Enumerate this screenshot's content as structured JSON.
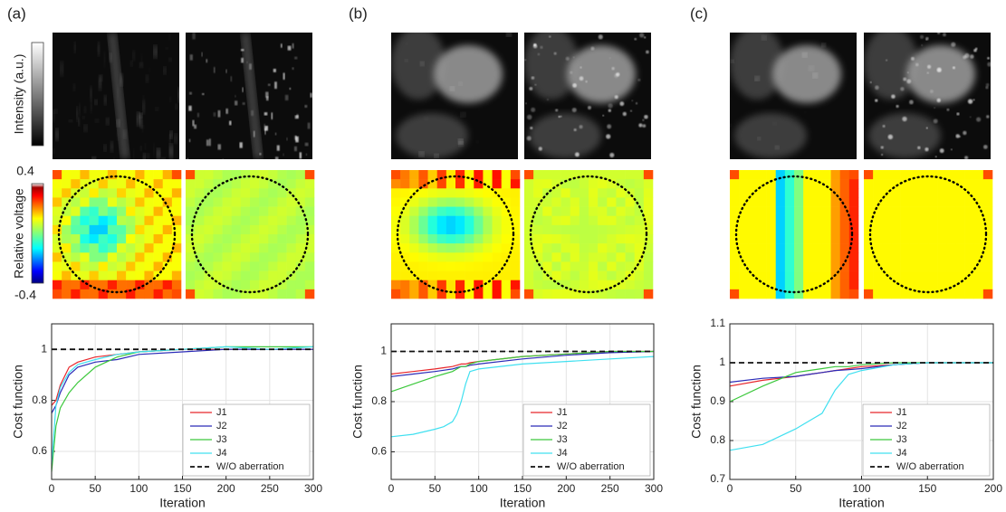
{
  "panels": [
    {
      "label": "(a)"
    },
    {
      "label": "(b)"
    },
    {
      "label": "(c)"
    }
  ],
  "colorbars": {
    "intensity_label": "Intensity (a.u.)",
    "voltage_label": "Relative voltage",
    "voltage_max": "0.4",
    "voltage_min": "-0.4"
  },
  "chart_data": [
    {
      "type": "line",
      "xlabel": "Iteration",
      "ylabel": "Cost function",
      "x": [
        0,
        5,
        10,
        20,
        30,
        50,
        75,
        100,
        150,
        200,
        250,
        300
      ],
      "xlim": [
        0,
        300
      ],
      "ylim": [
        0.49,
        1.1
      ],
      "xticks": [
        0,
        50,
        100,
        150,
        200,
        250,
        300
      ],
      "yticks": [
        0.6,
        0.8,
        1
      ],
      "grid": true,
      "legend": "lower right",
      "series": [
        {
          "name": "J1",
          "color": "#e8262b",
          "values": [
            0.78,
            0.8,
            0.86,
            0.93,
            0.95,
            0.97,
            0.98,
            0.99,
            1.0,
            1.0,
            1.0,
            1.0
          ]
        },
        {
          "name": "J2",
          "color": "#2b2bb8",
          "values": [
            0.75,
            0.78,
            0.83,
            0.9,
            0.93,
            0.95,
            0.96,
            0.98,
            0.99,
            1.0,
            1.0,
            1.0
          ]
        },
        {
          "name": "J3",
          "color": "#3cc83c",
          "values": [
            0.52,
            0.7,
            0.77,
            0.83,
            0.87,
            0.93,
            0.97,
            0.99,
            1.0,
            1.01,
            1.01,
            1.01
          ]
        },
        {
          "name": "J4",
          "color": "#40e0f0",
          "values": [
            0.55,
            0.78,
            0.85,
            0.91,
            0.94,
            0.96,
            0.98,
            0.99,
            1.0,
            1.01,
            1.0,
            1.01
          ]
        },
        {
          "name": "W/O aberration",
          "color": "#111111",
          "linestyle": "dashed",
          "values": [
            1,
            1,
            1,
            1,
            1,
            1,
            1,
            1,
            1,
            1,
            1,
            1
          ]
        }
      ]
    },
    {
      "type": "line",
      "xlabel": "Iteration",
      "ylabel": "Cost function",
      "x": [
        0,
        25,
        50,
        60,
        70,
        75,
        80,
        85,
        90,
        100,
        150,
        200,
        250,
        300
      ],
      "xlim": [
        0,
        300
      ],
      "ylim": [
        0.49,
        1.11
      ],
      "xticks": [
        0,
        50,
        100,
        150,
        200,
        250,
        300
      ],
      "yticks": [
        0.6,
        0.8,
        1
      ],
      "grid": true,
      "legend": "lower right",
      "series": [
        {
          "name": "J1",
          "color": "#e8262b",
          "values": [
            0.91,
            0.92,
            0.93,
            0.935,
            0.94,
            0.945,
            0.95,
            0.95,
            0.955,
            0.96,
            0.98,
            0.99,
            1.0,
            1.0
          ]
        },
        {
          "name": "J2",
          "color": "#2b2bb8",
          "values": [
            0.9,
            0.91,
            0.92,
            0.925,
            0.93,
            0.935,
            0.94,
            0.94,
            0.945,
            0.95,
            0.97,
            0.985,
            0.995,
            1.0
          ]
        },
        {
          "name": "J3",
          "color": "#3cc83c",
          "values": [
            0.84,
            0.87,
            0.9,
            0.91,
            0.92,
            0.93,
            0.94,
            0.94,
            0.95,
            0.96,
            0.98,
            0.99,
            1.0,
            1.0
          ]
        },
        {
          "name": "J4",
          "color": "#40e0f0",
          "values": [
            0.66,
            0.67,
            0.69,
            0.7,
            0.72,
            0.75,
            0.8,
            0.87,
            0.92,
            0.93,
            0.95,
            0.96,
            0.97,
            0.98
          ]
        },
        {
          "name": "W/O aberration",
          "color": "#111111",
          "linestyle": "dashed",
          "values": [
            1,
            1,
            1,
            1,
            1,
            1,
            1,
            1,
            1,
            1,
            1,
            1,
            1,
            1
          ]
        }
      ]
    },
    {
      "type": "line",
      "xlabel": "Iteration",
      "ylabel": "Cost function",
      "x": [
        0,
        25,
        50,
        60,
        70,
        80,
        90,
        100,
        125,
        150,
        175,
        200
      ],
      "xlim": [
        0,
        200
      ],
      "ylim": [
        0.7,
        1.1
      ],
      "xticks": [
        0,
        50,
        100,
        150,
        200
      ],
      "yticks": [
        0.7,
        0.8,
        0.9,
        1,
        1.1
      ],
      "grid": true,
      "legend": "lower right",
      "series": [
        {
          "name": "J1",
          "color": "#e8262b",
          "values": [
            0.94,
            0.955,
            0.965,
            0.97,
            0.975,
            0.98,
            0.985,
            0.99,
            0.995,
            1,
            1,
            1
          ]
        },
        {
          "name": "J2",
          "color": "#2b2bb8",
          "values": [
            0.95,
            0.96,
            0.965,
            0.97,
            0.975,
            0.98,
            0.982,
            0.985,
            0.995,
            1,
            1,
            1
          ]
        },
        {
          "name": "J3",
          "color": "#3cc83c",
          "values": [
            0.9,
            0.94,
            0.975,
            0.98,
            0.985,
            0.99,
            0.99,
            0.995,
            1,
            1,
            1,
            1
          ]
        },
        {
          "name": "J4",
          "color": "#40e0f0",
          "values": [
            0.775,
            0.79,
            0.83,
            0.85,
            0.87,
            0.93,
            0.97,
            0.98,
            0.995,
            1,
            1,
            1
          ]
        },
        {
          "name": "W/O aberration",
          "color": "#111111",
          "linestyle": "dashed",
          "values": [
            1,
            1,
            1,
            1,
            1,
            1,
            1,
            1,
            1,
            1,
            1,
            1
          ]
        }
      ]
    }
  ]
}
